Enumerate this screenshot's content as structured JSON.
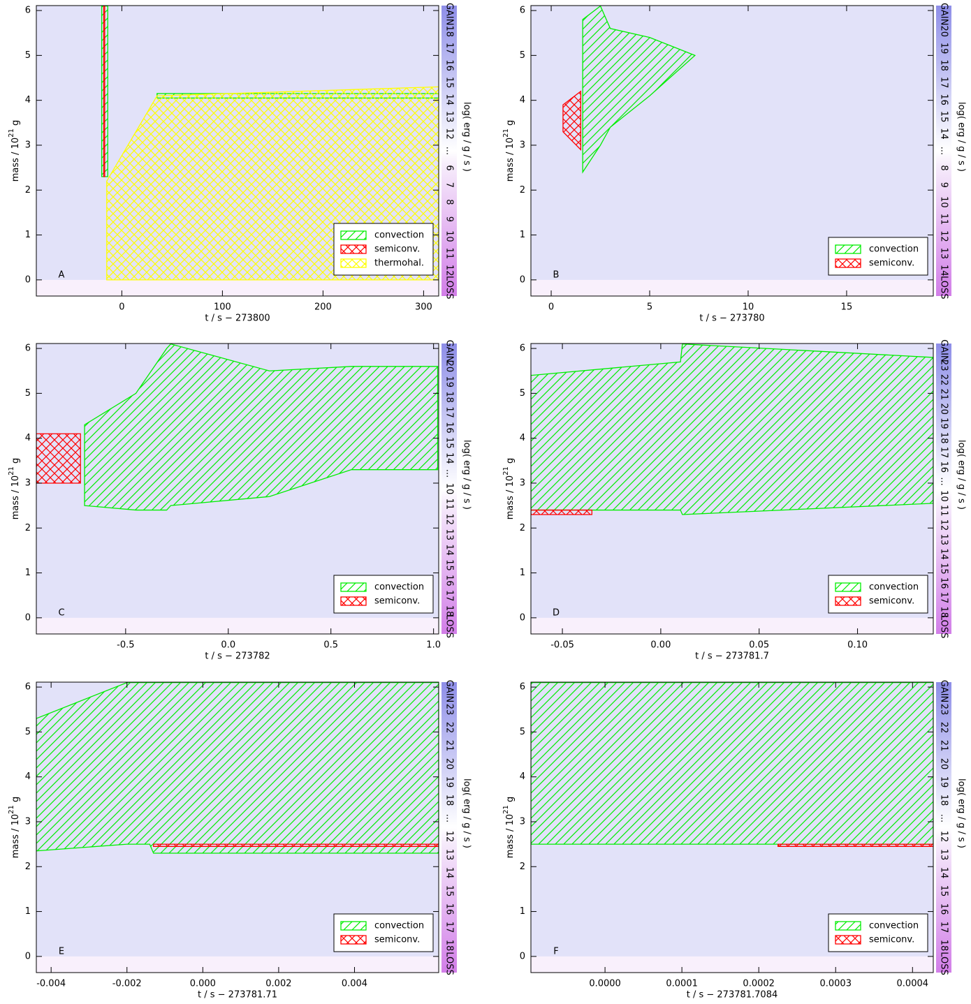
{
  "chart_data": [
    {
      "type": "kippenhahn",
      "label": "A",
      "xlabel": "t / s − 273800",
      "ylabel": "mass / 10",
      "ylabel_exp": "21",
      "ylabel_unit": " g",
      "xlim": [
        -85,
        315
      ],
      "xticks": [
        0,
        100,
        200,
        300
      ],
      "ylim": [
        -0.36,
        6.11
      ],
      "yticks": [
        0,
        1,
        2,
        3,
        4,
        5,
        6
      ],
      "colorbar_label": "log( erg / g / s )",
      "colorbar_labels": [
        "LOSS",
        "12",
        "11",
        "10",
        "9",
        "8",
        "7",
        "6",
        "...",
        "12",
        "13",
        "14",
        "15",
        "16",
        "17",
        "18",
        "GAIN"
      ],
      "series": [
        {
          "name": "convection",
          "color": "#00ee00",
          "hatch": "diagonal",
          "x": [
            -20,
            -14,
            -14,
            35,
            315
          ],
          "lower": [
            2.3,
            2.3,
            null,
            4.05,
            4.05
          ],
          "upper": [
            6.1,
            6.1,
            null,
            4.15,
            4.15
          ]
        },
        {
          "name": "semiconv.",
          "color": "#ff0000",
          "hatch": "cross",
          "x": [
            -18,
            -17
          ],
          "lower": [
            2.3,
            2.3
          ],
          "upper": [
            6.1,
            6.1
          ]
        },
        {
          "name": "thermohal.",
          "color": "#ffff00",
          "hatch": "cross",
          "x": [
            -15,
            35,
            315
          ],
          "lower": [
            0,
            0,
            0
          ],
          "upper": [
            2.2,
            4.1,
            4.3
          ]
        }
      ]
    },
    {
      "type": "kippenhahn",
      "label": "B",
      "xlabel": "t / s − 273780",
      "ylabel": "mass / 10",
      "ylabel_exp": "21",
      "ylabel_unit": " g",
      "xlim": [
        -1.03,
        19.4
      ],
      "xticks": [
        0,
        5,
        10,
        15
      ],
      "ylim": [
        -0.36,
        6.11
      ],
      "yticks": [
        0,
        1,
        2,
        3,
        4,
        5,
        6
      ],
      "colorbar_label": "log( erg / g / s )",
      "colorbar_labels": [
        "LOSS",
        "14",
        "13",
        "12",
        "11",
        "10",
        "9",
        "8",
        "...",
        "14",
        "15",
        "16",
        "17",
        "18",
        "19",
        "20",
        "GAIN"
      ],
      "series": [
        {
          "name": "convection",
          "color": "#00ee00",
          "hatch": "diagonal",
          "x": [
            1.6,
            2.5,
            3,
            5,
            7.3
          ],
          "lower": [
            2.4,
            3.0,
            3.4,
            4.1,
            5.0
          ],
          "upper": [
            5.8,
            6.1,
            5.6,
            5.4,
            5.0
          ]
        },
        {
          "name": "semiconv.",
          "color": "#ff0000",
          "hatch": "cross",
          "x": [
            0.6,
            1.5
          ],
          "lower": [
            3.3,
            2.9
          ],
          "upper": [
            3.9,
            4.2
          ]
        }
      ]
    },
    {
      "type": "kippenhahn",
      "label": "C",
      "xlabel": "t / s − 273782",
      "ylabel": "mass / 10",
      "ylabel_exp": "21",
      "ylabel_unit": " g",
      "xlim": [
        -0.935,
        1.025
      ],
      "xticks": [
        -0.5,
        {
          "value": 0,
          "label": "0.0"
        },
        0.5,
        {
          "value": 1,
          "label": "1.0"
        }
      ],
      "ylim": [
        -0.36,
        6.11
      ],
      "yticks": [
        0,
        1,
        2,
        3,
        4,
        5,
        6
      ],
      "colorbar_label": "log( erg / g / s )",
      "colorbar_labels": [
        "LOSS",
        "18",
        "17",
        "16",
        "15",
        "14",
        "13",
        "12",
        "11",
        "10",
        "...",
        "14",
        "15",
        "16",
        "17",
        "18",
        "19",
        "20",
        "GAIN"
      ],
      "series": [
        {
          "name": "convection",
          "color": "#00ee00",
          "hatch": "diagonal",
          "x": [
            -0.7,
            -0.45,
            -0.3,
            -0.28,
            0.2,
            0.6,
            1.02
          ],
          "lower": [
            2.5,
            2.4,
            2.4,
            2.5,
            2.7,
            3.3,
            3.3
          ],
          "upper": [
            4.3,
            5.0,
            6.0,
            6.1,
            5.5,
            5.6,
            5.6
          ]
        },
        {
          "name": "semiconv.",
          "color": "#ff0000",
          "hatch": "cross",
          "x": [
            -0.935,
            -0.72
          ],
          "lower": [
            3.0,
            3.0
          ],
          "upper": [
            4.1,
            4.1
          ]
        }
      ]
    },
    {
      "type": "kippenhahn",
      "label": "D",
      "xlabel": "t / s − 273781.7",
      "ylabel": "mass / 10",
      "ylabel_exp": "21",
      "ylabel_unit": " g",
      "xlim": [
        -0.066,
        0.1385
      ],
      "xticks": [
        -0.05,
        {
          "value": 0,
          "label": "0.00"
        },
        0.05,
        {
          "value": 0.1,
          "label": "0.10"
        }
      ],
      "ylim": [
        -0.36,
        6.11
      ],
      "yticks": [
        0,
        1,
        2,
        3,
        4,
        5,
        6
      ],
      "colorbar_label": "log( erg / g / s )",
      "colorbar_labels": [
        "LOSS",
        "18",
        "17",
        "16",
        "15",
        "14",
        "13",
        "12",
        "11",
        "10",
        "...",
        "16",
        "17",
        "18",
        "19",
        "20",
        "21",
        "22",
        "23",
        "GAIN"
      ],
      "series": [
        {
          "name": "convection",
          "color": "#00ee00",
          "hatch": "diagonal",
          "x": [
            -0.066,
            0.01,
            0.011,
            0.1385
          ],
          "lower": [
            2.4,
            2.4,
            2.3,
            2.55
          ],
          "upper": [
            5.4,
            5.7,
            6.1,
            5.8
          ]
        },
        {
          "name": "semiconv.",
          "color": "#ff0000",
          "hatch": "cross",
          "x": [
            -0.066,
            -0.035
          ],
          "lower": [
            2.3,
            2.3
          ],
          "upper": [
            2.4,
            2.4
          ]
        }
      ]
    },
    {
      "type": "kippenhahn",
      "label": "E",
      "xlabel": "t / s − 273781.71",
      "ylabel": "mass / 10",
      "ylabel_exp": "21",
      "ylabel_unit": " g",
      "xlim": [
        -0.00439,
        0.00622
      ],
      "xticks": [
        -0.004,
        -0.002,
        {
          "value": 0,
          "label": "0.000"
        },
        0.002,
        0.004
      ],
      "ylim": [
        -0.36,
        6.11
      ],
      "yticks": [
        0,
        1,
        2,
        3,
        4,
        5,
        6
      ],
      "colorbar_label": "log( erg / g / s )",
      "colorbar_labels": [
        "LOSS",
        "18",
        "17",
        "16",
        "15",
        "14",
        "13",
        "12",
        "...",
        "18",
        "19",
        "20",
        "21",
        "22",
        "23",
        "GAIN"
      ],
      "series": [
        {
          "name": "convection",
          "color": "#00ee00",
          "hatch": "diagonal",
          "x": [
            -0.00439,
            -0.002,
            -0.0014,
            -0.0013,
            0.00622
          ],
          "lower": [
            2.35,
            2.5,
            2.5,
            2.3,
            2.3
          ],
          "upper": [
            5.3,
            6.1,
            6.1,
            6.1,
            6.1
          ]
        },
        {
          "name": "semiconv.",
          "color": "#ff0000",
          "hatch": "cross",
          "x": [
            -0.0013,
            0.00622
          ],
          "lower": [
            2.45,
            2.45
          ],
          "upper": [
            2.5,
            2.5
          ]
        }
      ]
    },
    {
      "type": "kippenhahn",
      "label": "F",
      "xlabel": "t / s − 273781.7084",
      "ylabel": "mass / 10",
      "ylabel_exp": "21",
      "ylabel_unit": " g",
      "xlim": [
        -9.64e-05,
        0.000427
      ],
      "xticks": [
        {
          "value": 0,
          "label": "0.0000"
        },
        0.0001,
        0.0002,
        0.0003,
        0.0004
      ],
      "ylim": [
        -0.36,
        6.11
      ],
      "yticks": [
        0,
        1,
        2,
        3,
        4,
        5,
        6
      ],
      "colorbar_label": "log( erg / g / s )",
      "colorbar_labels": [
        "LOSS",
        "18",
        "17",
        "16",
        "15",
        "14",
        "13",
        "12",
        "...",
        "18",
        "19",
        "20",
        "21",
        "22",
        "23",
        "GAIN"
      ],
      "series": [
        {
          "name": "convection",
          "color": "#00ee00",
          "hatch": "diagonal",
          "x": [
            -9.64e-05,
            0.000427
          ],
          "lower": [
            2.5,
            2.5
          ],
          "upper": [
            6.1,
            6.1
          ]
        },
        {
          "name": "semiconv.",
          "color": "#ff0000",
          "hatch": "cross",
          "x": [
            0.000225,
            0.000427
          ],
          "lower": [
            2.45,
            2.45
          ],
          "upper": [
            2.5,
            2.5
          ]
        }
      ]
    }
  ]
}
